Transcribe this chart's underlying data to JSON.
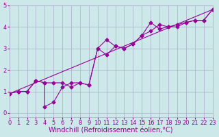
{
  "xlabel": "Windchill (Refroidissement éolien,°C)",
  "background_color": "#cce8e8",
  "grid_color": "#aaaacc",
  "line_color": "#990099",
  "xlim": [
    0,
    23
  ],
  "ylim": [
    -0.2,
    5.0
  ],
  "yticks": [
    0,
    1,
    2,
    3,
    4,
    5
  ],
  "xticks": [
    0,
    1,
    2,
    3,
    4,
    5,
    6,
    7,
    8,
    9,
    10,
    11,
    12,
    13,
    14,
    15,
    16,
    17,
    18,
    19,
    20,
    21,
    22,
    23
  ],
  "series1_x": [
    0,
    1,
    2,
    3,
    4,
    4,
    5,
    6,
    7,
    8,
    9,
    10,
    11,
    12,
    13,
    14,
    15,
    16,
    17,
    18,
    19,
    20,
    21,
    22,
    23
  ],
  "series1_y": [
    0.9,
    1.0,
    1.0,
    1.5,
    1.4,
    0.3,
    0.5,
    1.2,
    1.4,
    1.4,
    1.3,
    3.0,
    2.7,
    3.1,
    3.0,
    3.2,
    3.6,
    4.2,
    3.9,
    4.0,
    4.1,
    4.2,
    4.3,
    4.3,
    4.8
  ],
  "series2_x": [
    0,
    1,
    2,
    3,
    4,
    5,
    6,
    7,
    8,
    9,
    10,
    11,
    12,
    13,
    14,
    15,
    16,
    17,
    18,
    19,
    20,
    21,
    22,
    23
  ],
  "series2_y": [
    0.9,
    1.0,
    1.0,
    1.5,
    1.4,
    1.4,
    1.4,
    1.2,
    1.4,
    1.3,
    3.0,
    3.4,
    3.1,
    3.0,
    3.2,
    3.6,
    3.8,
    4.1,
    4.0,
    4.0,
    4.2,
    4.3,
    4.3,
    4.8
  ],
  "series3_x": [
    0,
    23
  ],
  "series3_y": [
    0.9,
    4.8
  ],
  "xlabel_fontsize": 7,
  "tick_fontsize": 6
}
